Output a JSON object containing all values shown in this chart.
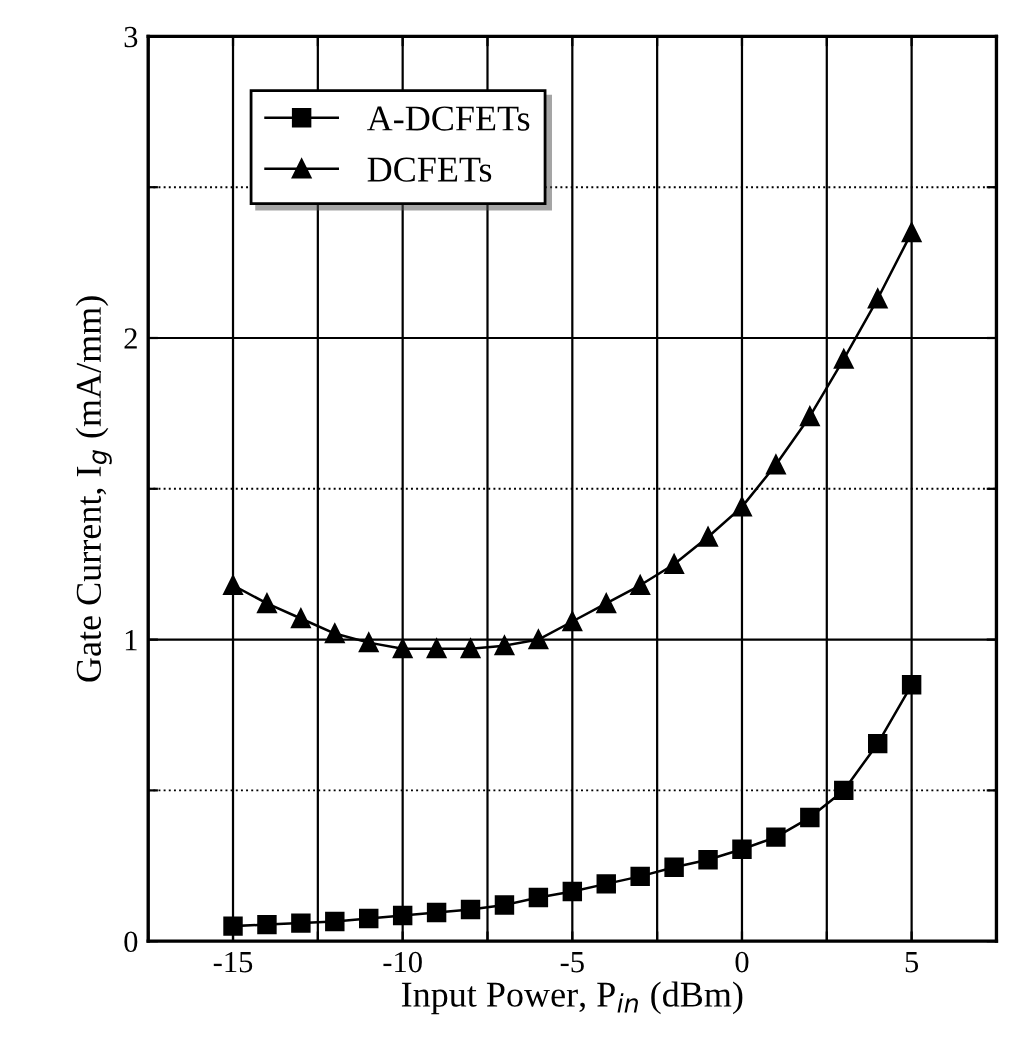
{
  "chart_data": {
    "type": "line",
    "xlabel": "Input Power, P$_{in}$ (dBm)",
    "ylabel": "Gate Current, I$_{g}$ (mA/mm)",
    "x": [
      -15,
      -14,
      -13,
      -12,
      -11,
      -10,
      -9,
      -8,
      -7,
      -6,
      -5,
      -4,
      -3,
      -2,
      -1,
      0,
      1,
      2,
      3,
      4,
      5
    ],
    "series": [
      {
        "name": "A-DCFETs",
        "color": "#000000",
        "marker": "square",
        "values": [
          0.05,
          0.055,
          0.06,
          0.065,
          0.075,
          0.085,
          0.095,
          0.105,
          0.12,
          0.145,
          0.165,
          0.19,
          0.215,
          0.245,
          0.27,
          0.305,
          0.345,
          0.41,
          0.5,
          0.655,
          0.85
        ]
      },
      {
        "name": "DCFETs",
        "color": "#000000",
        "marker": "triangle",
        "values": [
          1.18,
          1.12,
          1.07,
          1.02,
          0.99,
          0.97,
          0.97,
          0.97,
          0.98,
          1.0,
          1.06,
          1.12,
          1.18,
          1.25,
          1.34,
          1.44,
          1.58,
          1.74,
          1.93,
          2.13,
          2.35
        ]
      }
    ],
    "xlim": [
      -17.5,
      7.5
    ],
    "xticks": [
      {
        "value": -17.5,
        "label": null
      },
      -15,
      {
        "value": -12.5,
        "label": null
      },
      -10,
      {
        "value": -7.5,
        "label": null
      },
      -5,
      {
        "value": -2.5,
        "label": null
      },
      0,
      {
        "value": 2.5,
        "label": null
      },
      5,
      {
        "value": 7.5,
        "label": null
      }
    ],
    "ylim": [
      0,
      3
    ],
    "yticks": [
      0,
      {
        "value": 0.5,
        "label": null
      },
      1,
      {
        "value": 1.5,
        "label": null
      },
      2,
      {
        "value": 2.5,
        "label": null
      },
      3
    ],
    "grid": true,
    "legend": "top left",
    "line_style": "solid"
  }
}
